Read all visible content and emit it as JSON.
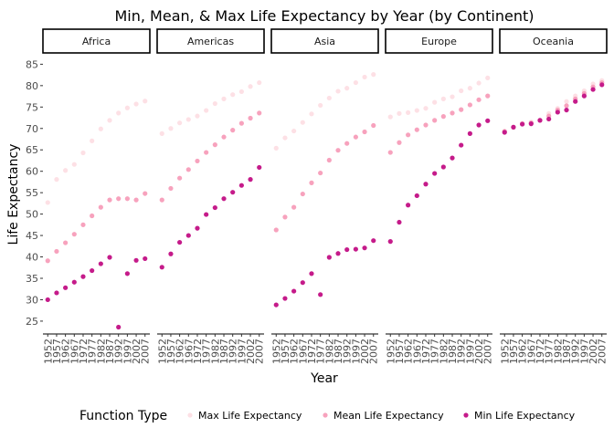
{
  "chart_data": {
    "type": "scatter",
    "title": "Min, Mean, & Max Life Expectancy by Year (by Continent)",
    "xlabel": "Year",
    "ylabel": "Life Expectancy",
    "x": [
      1952,
      1957,
      1962,
      1967,
      1972,
      1977,
      1982,
      1987,
      1992,
      1997,
      2002,
      2007
    ],
    "x_tick_labels": [
      "1952",
      "1957",
      "1962",
      "1967",
      "1972",
      "1977",
      "1982",
      "1987",
      "1992",
      "1997",
      "2002",
      "2007"
    ],
    "y_ticks": [
      25,
      30,
      35,
      40,
      45,
      50,
      55,
      60,
      65,
      70,
      75,
      80,
      85
    ],
    "ylim": [
      22,
      87
    ],
    "grid": false,
    "facets": [
      "Africa",
      "Americas",
      "Asia",
      "Europe",
      "Oceania"
    ],
    "legend": {
      "title": "Function Type",
      "position": "bottom",
      "entries": [
        "Max Life Expectancy",
        "Mean Life Expectancy",
        "Min Life Expectancy"
      ]
    },
    "colors": {
      "Max Life Expectancy": "#fde0e5",
      "Mean Life Expectancy": "#f7a2bd",
      "Min Life Expectancy": "#c51b8a"
    },
    "panels": [
      {
        "facet": "Africa",
        "series": [
          {
            "name": "Max Life Expectancy",
            "values": [
              52.7,
              58.1,
              60.2,
              61.6,
              64.3,
              67.1,
              69.9,
              71.9,
              73.6,
              74.8,
              75.7,
              76.4
            ]
          },
          {
            "name": "Mean Life Expectancy",
            "values": [
              39.1,
              41.3,
              43.3,
              45.3,
              47.5,
              49.6,
              51.6,
              53.3,
              53.6,
              53.6,
              53.3,
              54.8
            ]
          },
          {
            "name": "Min Life Expectancy",
            "values": [
              30.0,
              31.6,
              32.8,
              34.1,
              35.4,
              36.8,
              38.4,
              39.9,
              23.6,
              36.1,
              39.2,
              39.6
            ]
          }
        ]
      },
      {
        "facet": "Americas",
        "series": [
          {
            "name": "Max Life Expectancy",
            "values": [
              68.8,
              70.0,
              71.3,
              72.1,
              72.9,
              74.2,
              75.8,
              76.9,
              77.9,
              78.6,
              79.8,
              80.7
            ]
          },
          {
            "name": "Mean Life Expectancy",
            "values": [
              53.3,
              56.0,
              58.4,
              60.4,
              62.4,
              64.4,
              66.2,
              68.0,
              69.6,
              71.2,
              72.4,
              73.6
            ]
          },
          {
            "name": "Min Life Expectancy",
            "values": [
              37.6,
              40.7,
              43.4,
              45.0,
              46.7,
              49.9,
              51.5,
              53.6,
              55.1,
              56.7,
              58.1,
              60.9
            ]
          }
        ]
      },
      {
        "facet": "Asia",
        "series": [
          {
            "name": "Max Life Expectancy",
            "values": [
              65.4,
              67.8,
              69.4,
              71.4,
              73.4,
              75.4,
              77.1,
              78.7,
              79.4,
              80.7,
              82.0,
              82.6
            ]
          },
          {
            "name": "Mean Life Expectancy",
            "values": [
              46.3,
              49.3,
              51.6,
              54.7,
              57.3,
              59.6,
              62.6,
              64.9,
              66.5,
              68.0,
              69.2,
              70.7
            ]
          },
          {
            "name": "Min Life Expectancy",
            "values": [
              28.8,
              30.3,
              32.0,
              34.0,
              36.1,
              31.2,
              39.9,
              40.8,
              41.7,
              41.8,
              42.1,
              43.8
            ]
          }
        ]
      },
      {
        "facet": "Europe",
        "series": [
          {
            "name": "Max Life Expectancy",
            "values": [
              72.7,
              73.5,
              73.7,
              74.2,
              74.7,
              76.1,
              76.9,
              77.4,
              78.8,
              79.4,
              80.6,
              81.8
            ]
          },
          {
            "name": "Mean Life Expectancy",
            "values": [
              64.4,
              66.7,
              68.5,
              69.7,
              70.8,
              71.9,
              72.8,
              73.6,
              74.4,
              75.5,
              76.7,
              77.6
            ]
          },
          {
            "name": "Min Life Expectancy",
            "values": [
              43.6,
              48.1,
              52.1,
              54.3,
              57.0,
              59.5,
              61.0,
              63.1,
              66.1,
              68.8,
              70.8,
              71.8
            ]
          }
        ]
      },
      {
        "facet": "Oceania",
        "series": [
          {
            "name": "Max Life Expectancy",
            "values": [
              69.4,
              70.3,
              71.2,
              71.5,
              71.9,
              73.5,
              74.7,
              76.3,
              77.6,
              78.8,
              80.4,
              81.2
            ]
          },
          {
            "name": "Mean Life Expectancy",
            "values": [
              69.3,
              70.3,
              71.1,
              71.3,
              71.9,
              72.9,
              74.3,
              75.3,
              76.9,
              78.2,
              79.7,
              80.7
            ]
          },
          {
            "name": "Min Life Expectancy",
            "values": [
              69.1,
              70.3,
              71.0,
              71.1,
              71.9,
              72.2,
              73.8,
              74.3,
              76.3,
              77.6,
              79.1,
              80.2
            ]
          }
        ]
      }
    ]
  }
}
